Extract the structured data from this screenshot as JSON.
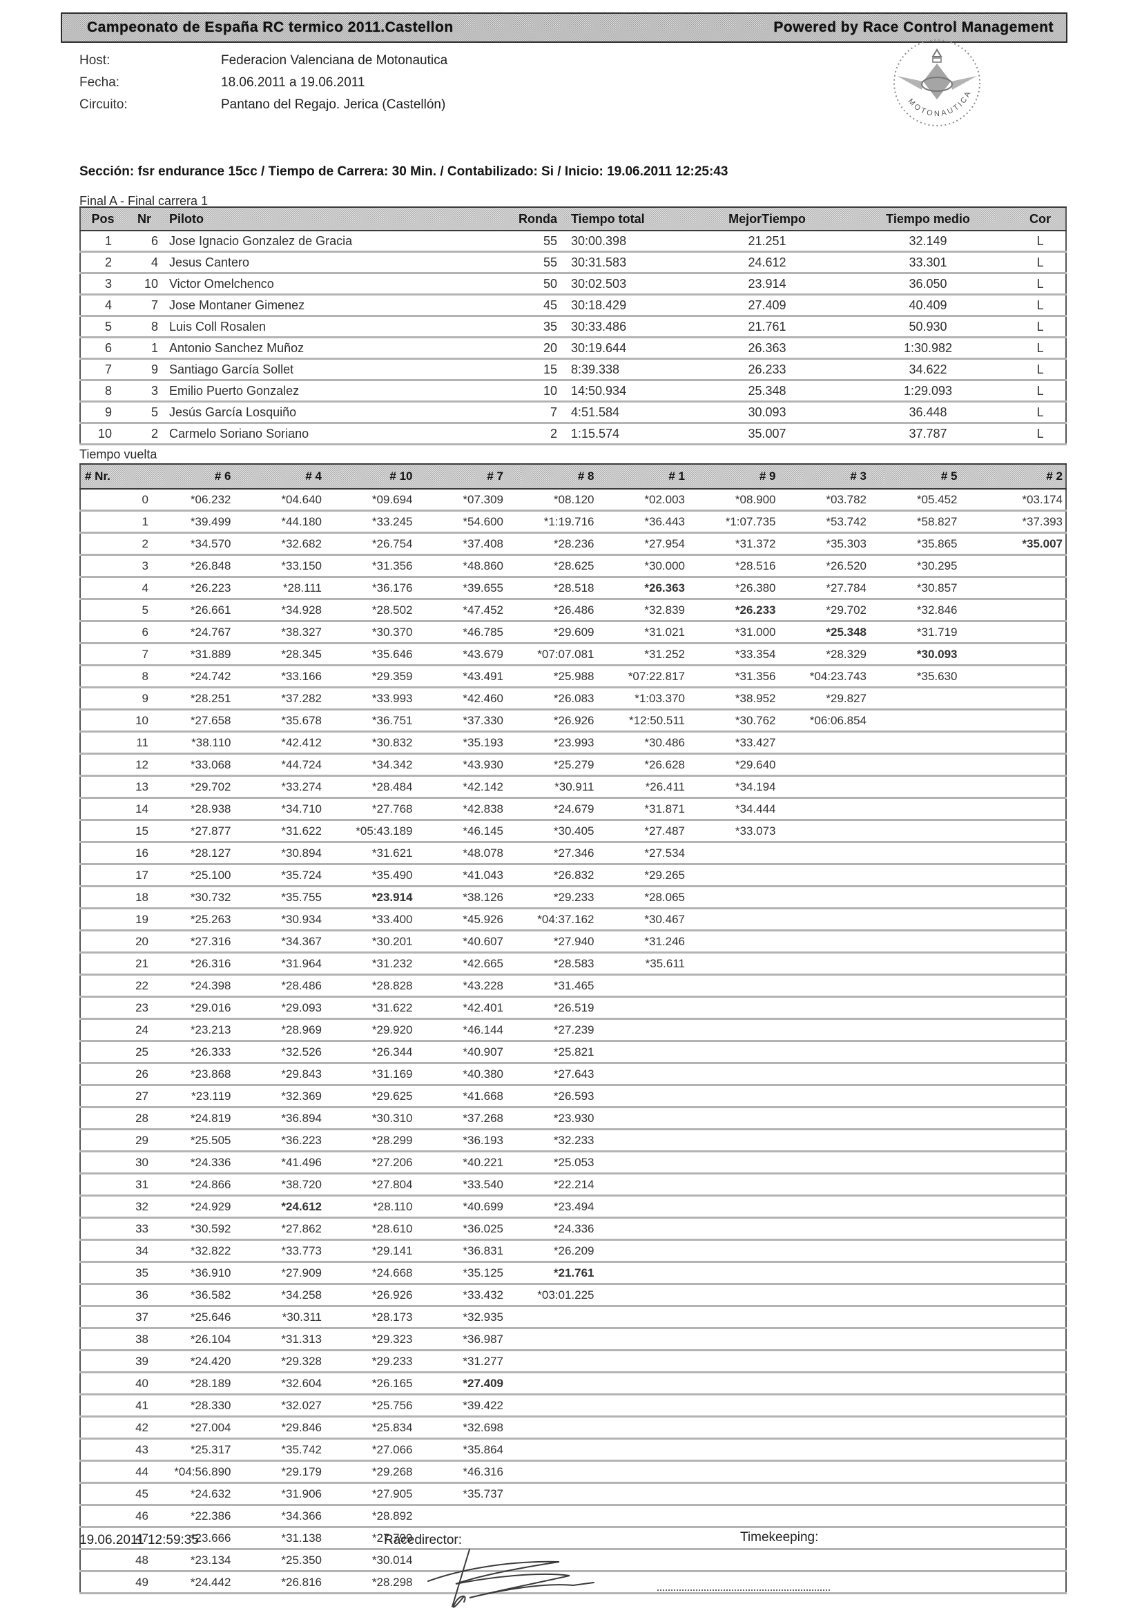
{
  "titlebar": {
    "left": "Campeonato de España RC termico 2011.Castellon",
    "right": "Powered by Race Control Management"
  },
  "info": [
    {
      "label": "Host:",
      "value": "Federacion Valenciana de Motonautica"
    },
    {
      "label": "Fecha:",
      "value": "18.06.2011 a 19.06.2011"
    },
    {
      "label": "Circuito:",
      "value": "Pantano del Regajo. Jerica (Castellón)"
    }
  ],
  "logo": {
    "text": "MOTONAUTICA"
  },
  "section_line": "Sección: fsr endurance 15cc / Tiempo de Carrera: 30 Min. / Contabilizado: Si / Inicio: 19.06.2011 12:25:43",
  "results": {
    "title": "Final A - Final carrera 1",
    "columns": [
      "Pos",
      "Nr",
      "Piloto",
      "Ronda",
      "Tiempo total",
      "MejorTiempo",
      "Tiempo medio",
      "Cor"
    ],
    "rows": [
      [
        "1",
        "6",
        "Jose Ignacio Gonzalez de Gracia",
        "55",
        "30:00.398",
        "21.251",
        "32.149",
        "L"
      ],
      [
        "2",
        "4",
        "Jesus Cantero",
        "55",
        "30:31.583",
        "24.612",
        "33.301",
        "L"
      ],
      [
        "3",
        "10",
        "Victor Omelchenco",
        "50",
        "30:02.503",
        "23.914",
        "36.050",
        "L"
      ],
      [
        "4",
        "7",
        "Jose Montaner Gimenez",
        "45",
        "30:18.429",
        "27.409",
        "40.409",
        "L"
      ],
      [
        "5",
        "8",
        "Luis Coll Rosalen",
        "35",
        "30:33.486",
        "21.761",
        "50.930",
        "L"
      ],
      [
        "6",
        "1",
        "Antonio Sanchez Muñoz",
        "20",
        "30:19.644",
        "26.363",
        "1:30.982",
        "L"
      ],
      [
        "7",
        "9",
        "Santiago García Sollet",
        "15",
        "8:39.338",
        "26.233",
        "34.622",
        "L"
      ],
      [
        "8",
        "3",
        "Emilio Puerto Gonzalez",
        "10",
        "14:50.934",
        "25.348",
        "1:29.093",
        "L"
      ],
      [
        "9",
        "5",
        "Jesús García Losquiño",
        "7",
        "4:51.584",
        "30.093",
        "36.448",
        "L"
      ],
      [
        "10",
        "2",
        "Carmelo Soriano Soriano",
        "2",
        "1:15.574",
        "35.007",
        "37.787",
        "L"
      ]
    ]
  },
  "laps": {
    "title": "Tiempo vuelta",
    "columns": [
      "# Nr.",
      "# 6",
      "# 4",
      "# 10",
      "# 7",
      "# 8",
      "# 1",
      "# 9",
      "# 3",
      "# 5",
      "# 2"
    ],
    "bold_cells": [
      [
        2,
        10
      ],
      [
        4,
        6
      ],
      [
        5,
        7
      ],
      [
        6,
        8
      ],
      [
        7,
        9
      ],
      [
        18,
        3
      ],
      [
        32,
        2
      ],
      [
        35,
        5
      ],
      [
        40,
        4
      ]
    ],
    "rows": [
      [
        "0",
        "*06.232",
        "*04.640",
        "*09.694",
        "*07.309",
        "*08.120",
        "*02.003",
        "*08.900",
        "*03.782",
        "*05.452",
        "*03.174"
      ],
      [
        "1",
        "*39.499",
        "*44.180",
        "*33.245",
        "*54.600",
        "*1:19.716",
        "*36.443",
        "*1:07.735",
        "*53.742",
        "*58.827",
        "*37.393"
      ],
      [
        "2",
        "*34.570",
        "*32.682",
        "*26.754",
        "*37.408",
        "*28.236",
        "*27.954",
        "*31.372",
        "*35.303",
        "*35.865",
        "*35.007"
      ],
      [
        "3",
        "*26.848",
        "*33.150",
        "*31.356",
        "*48.860",
        "*28.625",
        "*30.000",
        "*28.516",
        "*26.520",
        "*30.295",
        ""
      ],
      [
        "4",
        "*26.223",
        "*28.111",
        "*36.176",
        "*39.655",
        "*28.518",
        "*26.363",
        "*26.380",
        "*27.784",
        "*30.857",
        ""
      ],
      [
        "5",
        "*26.661",
        "*34.928",
        "*28.502",
        "*47.452",
        "*26.486",
        "*32.839",
        "*26.233",
        "*29.702",
        "*32.846",
        ""
      ],
      [
        "6",
        "*24.767",
        "*38.327",
        "*30.370",
        "*46.785",
        "*29.609",
        "*31.021",
        "*31.000",
        "*25.348",
        "*31.719",
        ""
      ],
      [
        "7",
        "*31.889",
        "*28.345",
        "*35.646",
        "*43.679",
        "*07:07.081",
        "*31.252",
        "*33.354",
        "*28.329",
        "*30.093",
        ""
      ],
      [
        "8",
        "*24.742",
        "*33.166",
        "*29.359",
        "*43.491",
        "*25.988",
        "*07:22.817",
        "*31.356",
        "*04:23.743",
        "*35.630",
        ""
      ],
      [
        "9",
        "*28.251",
        "*37.282",
        "*33.993",
        "*42.460",
        "*26.083",
        "*1:03.370",
        "*38.952",
        "*29.827",
        "",
        ""
      ],
      [
        "10",
        "*27.658",
        "*35.678",
        "*36.751",
        "*37.330",
        "*26.926",
        "*12:50.511",
        "*30.762",
        "*06:06.854",
        "",
        ""
      ],
      [
        "11",
        "*38.110",
        "*42.412",
        "*30.832",
        "*35.193",
        "*23.993",
        "*30.486",
        "*33.427",
        "",
        "",
        ""
      ],
      [
        "12",
        "*33.068",
        "*44.724",
        "*34.342",
        "*43.930",
        "*25.279",
        "*26.628",
        "*29.640",
        "",
        "",
        ""
      ],
      [
        "13",
        "*29.702",
        "*33.274",
        "*28.484",
        "*42.142",
        "*30.911",
        "*26.411",
        "*34.194",
        "",
        "",
        ""
      ],
      [
        "14",
        "*28.938",
        "*34.710",
        "*27.768",
        "*42.838",
        "*24.679",
        "*31.871",
        "*34.444",
        "",
        "",
        ""
      ],
      [
        "15",
        "*27.877",
        "*31.622",
        "*05:43.189",
        "*46.145",
        "*30.405",
        "*27.487",
        "*33.073",
        "",
        "",
        ""
      ],
      [
        "16",
        "*28.127",
        "*30.894",
        "*31.621",
        "*48.078",
        "*27.346",
        "*27.534",
        "",
        "",
        "",
        ""
      ],
      [
        "17",
        "*25.100",
        "*35.724",
        "*35.490",
        "*41.043",
        "*26.832",
        "*29.265",
        "",
        "",
        "",
        ""
      ],
      [
        "18",
        "*30.732",
        "*35.755",
        "*23.914",
        "*38.126",
        "*29.233",
        "*28.065",
        "",
        "",
        "",
        ""
      ],
      [
        "19",
        "*25.263",
        "*30.934",
        "*33.400",
        "*45.926",
        "*04:37.162",
        "*30.467",
        "",
        "",
        "",
        ""
      ],
      [
        "20",
        "*27.316",
        "*34.367",
        "*30.201",
        "*40.607",
        "*27.940",
        "*31.246",
        "",
        "",
        "",
        ""
      ],
      [
        "21",
        "*26.316",
        "*31.964",
        "*31.232",
        "*42.665",
        "*28.583",
        "*35.611",
        "",
        "",
        "",
        ""
      ],
      [
        "22",
        "*24.398",
        "*28.486",
        "*28.828",
        "*43.228",
        "*31.465",
        "",
        "",
        "",
        "",
        ""
      ],
      [
        "23",
        "*29.016",
        "*29.093",
        "*31.622",
        "*42.401",
        "*26.519",
        "",
        "",
        "",
        "",
        ""
      ],
      [
        "24",
        "*23.213",
        "*28.969",
        "*29.920",
        "*46.144",
        "*27.239",
        "",
        "",
        "",
        "",
        ""
      ],
      [
        "25",
        "*26.333",
        "*32.526",
        "*26.344",
        "*40.907",
        "*25.821",
        "",
        "",
        "",
        "",
        ""
      ],
      [
        "26",
        "*23.868",
        "*29.843",
        "*31.169",
        "*40.380",
        "*27.643",
        "",
        "",
        "",
        "",
        ""
      ],
      [
        "27",
        "*23.119",
        "*32.369",
        "*29.625",
        "*41.668",
        "*26.593",
        "",
        "",
        "",
        "",
        ""
      ],
      [
        "28",
        "*24.819",
        "*36.894",
        "*30.310",
        "*37.268",
        "*23.930",
        "",
        "",
        "",
        "",
        ""
      ],
      [
        "29",
        "*25.505",
        "*36.223",
        "*28.299",
        "*36.193",
        "*32.233",
        "",
        "",
        "",
        "",
        ""
      ],
      [
        "30",
        "*24.336",
        "*41.496",
        "*27.206",
        "*40.221",
        "*25.053",
        "",
        "",
        "",
        "",
        ""
      ],
      [
        "31",
        "*24.866",
        "*38.720",
        "*27.804",
        "*33.540",
        "*22.214",
        "",
        "",
        "",
        "",
        ""
      ],
      [
        "32",
        "*24.929",
        "*24.612",
        "*28.110",
        "*40.699",
        "*23.494",
        "",
        "",
        "",
        "",
        ""
      ],
      [
        "33",
        "*30.592",
        "*27.862",
        "*28.610",
        "*36.025",
        "*24.336",
        "",
        "",
        "",
        "",
        ""
      ],
      [
        "34",
        "*32.822",
        "*33.773",
        "*29.141",
        "*36.831",
        "*26.209",
        "",
        "",
        "",
        "",
        ""
      ],
      [
        "35",
        "*36.910",
        "*27.909",
        "*24.668",
        "*35.125",
        "*21.761",
        "",
        "",
        "",
        "",
        ""
      ],
      [
        "36",
        "*36.582",
        "*34.258",
        "*26.926",
        "*33.432",
        "*03:01.225",
        "",
        "",
        "",
        "",
        ""
      ],
      [
        "37",
        "*25.646",
        "*30.311",
        "*28.173",
        "*32.935",
        "",
        "",
        "",
        "",
        "",
        ""
      ],
      [
        "38",
        "*26.104",
        "*31.313",
        "*29.323",
        "*36.987",
        "",
        "",
        "",
        "",
        "",
        ""
      ],
      [
        "39",
        "*24.420",
        "*29.328",
        "*29.233",
        "*31.277",
        "",
        "",
        "",
        "",
        "",
        ""
      ],
      [
        "40",
        "*28.189",
        "*32.604",
        "*26.165",
        "*27.409",
        "",
        "",
        "",
        "",
        "",
        ""
      ],
      [
        "41",
        "*28.330",
        "*32.027",
        "*25.756",
        "*39.422",
        "",
        "",
        "",
        "",
        "",
        ""
      ],
      [
        "42",
        "*27.004",
        "*29.846",
        "*25.834",
        "*32.698",
        "",
        "",
        "",
        "",
        "",
        ""
      ],
      [
        "43",
        "*25.317",
        "*35.742",
        "*27.066",
        "*35.864",
        "",
        "",
        "",
        "",
        "",
        ""
      ],
      [
        "44",
        "*04:56.890",
        "*29.179",
        "*29.268",
        "*46.316",
        "",
        "",
        "",
        "",
        "",
        ""
      ],
      [
        "45",
        "*24.632",
        "*31.906",
        "*27.905",
        "*35.737",
        "",
        "",
        "",
        "",
        "",
        ""
      ],
      [
        "46",
        "*22.386",
        "*34.366",
        "*28.892",
        "",
        "",
        "",
        "",
        "",
        "",
        ""
      ],
      [
        "47",
        "*23.666",
        "*31.138",
        "*27.799",
        "",
        "",
        "",
        "",
        "",
        "",
        ""
      ],
      [
        "48",
        "*23.134",
        "*25.350",
        "*30.014",
        "",
        "",
        "",
        "",
        "",
        "",
        ""
      ],
      [
        "49",
        "*24.442",
        "*26.816",
        "*28.298",
        "",
        "",
        "",
        "",
        "",
        "",
        ""
      ]
    ]
  },
  "footer": {
    "printed": "19.06.2011 12:59:35",
    "racedirector_label": "Racedirector:",
    "timekeeping_label": "Timekeeping:"
  }
}
